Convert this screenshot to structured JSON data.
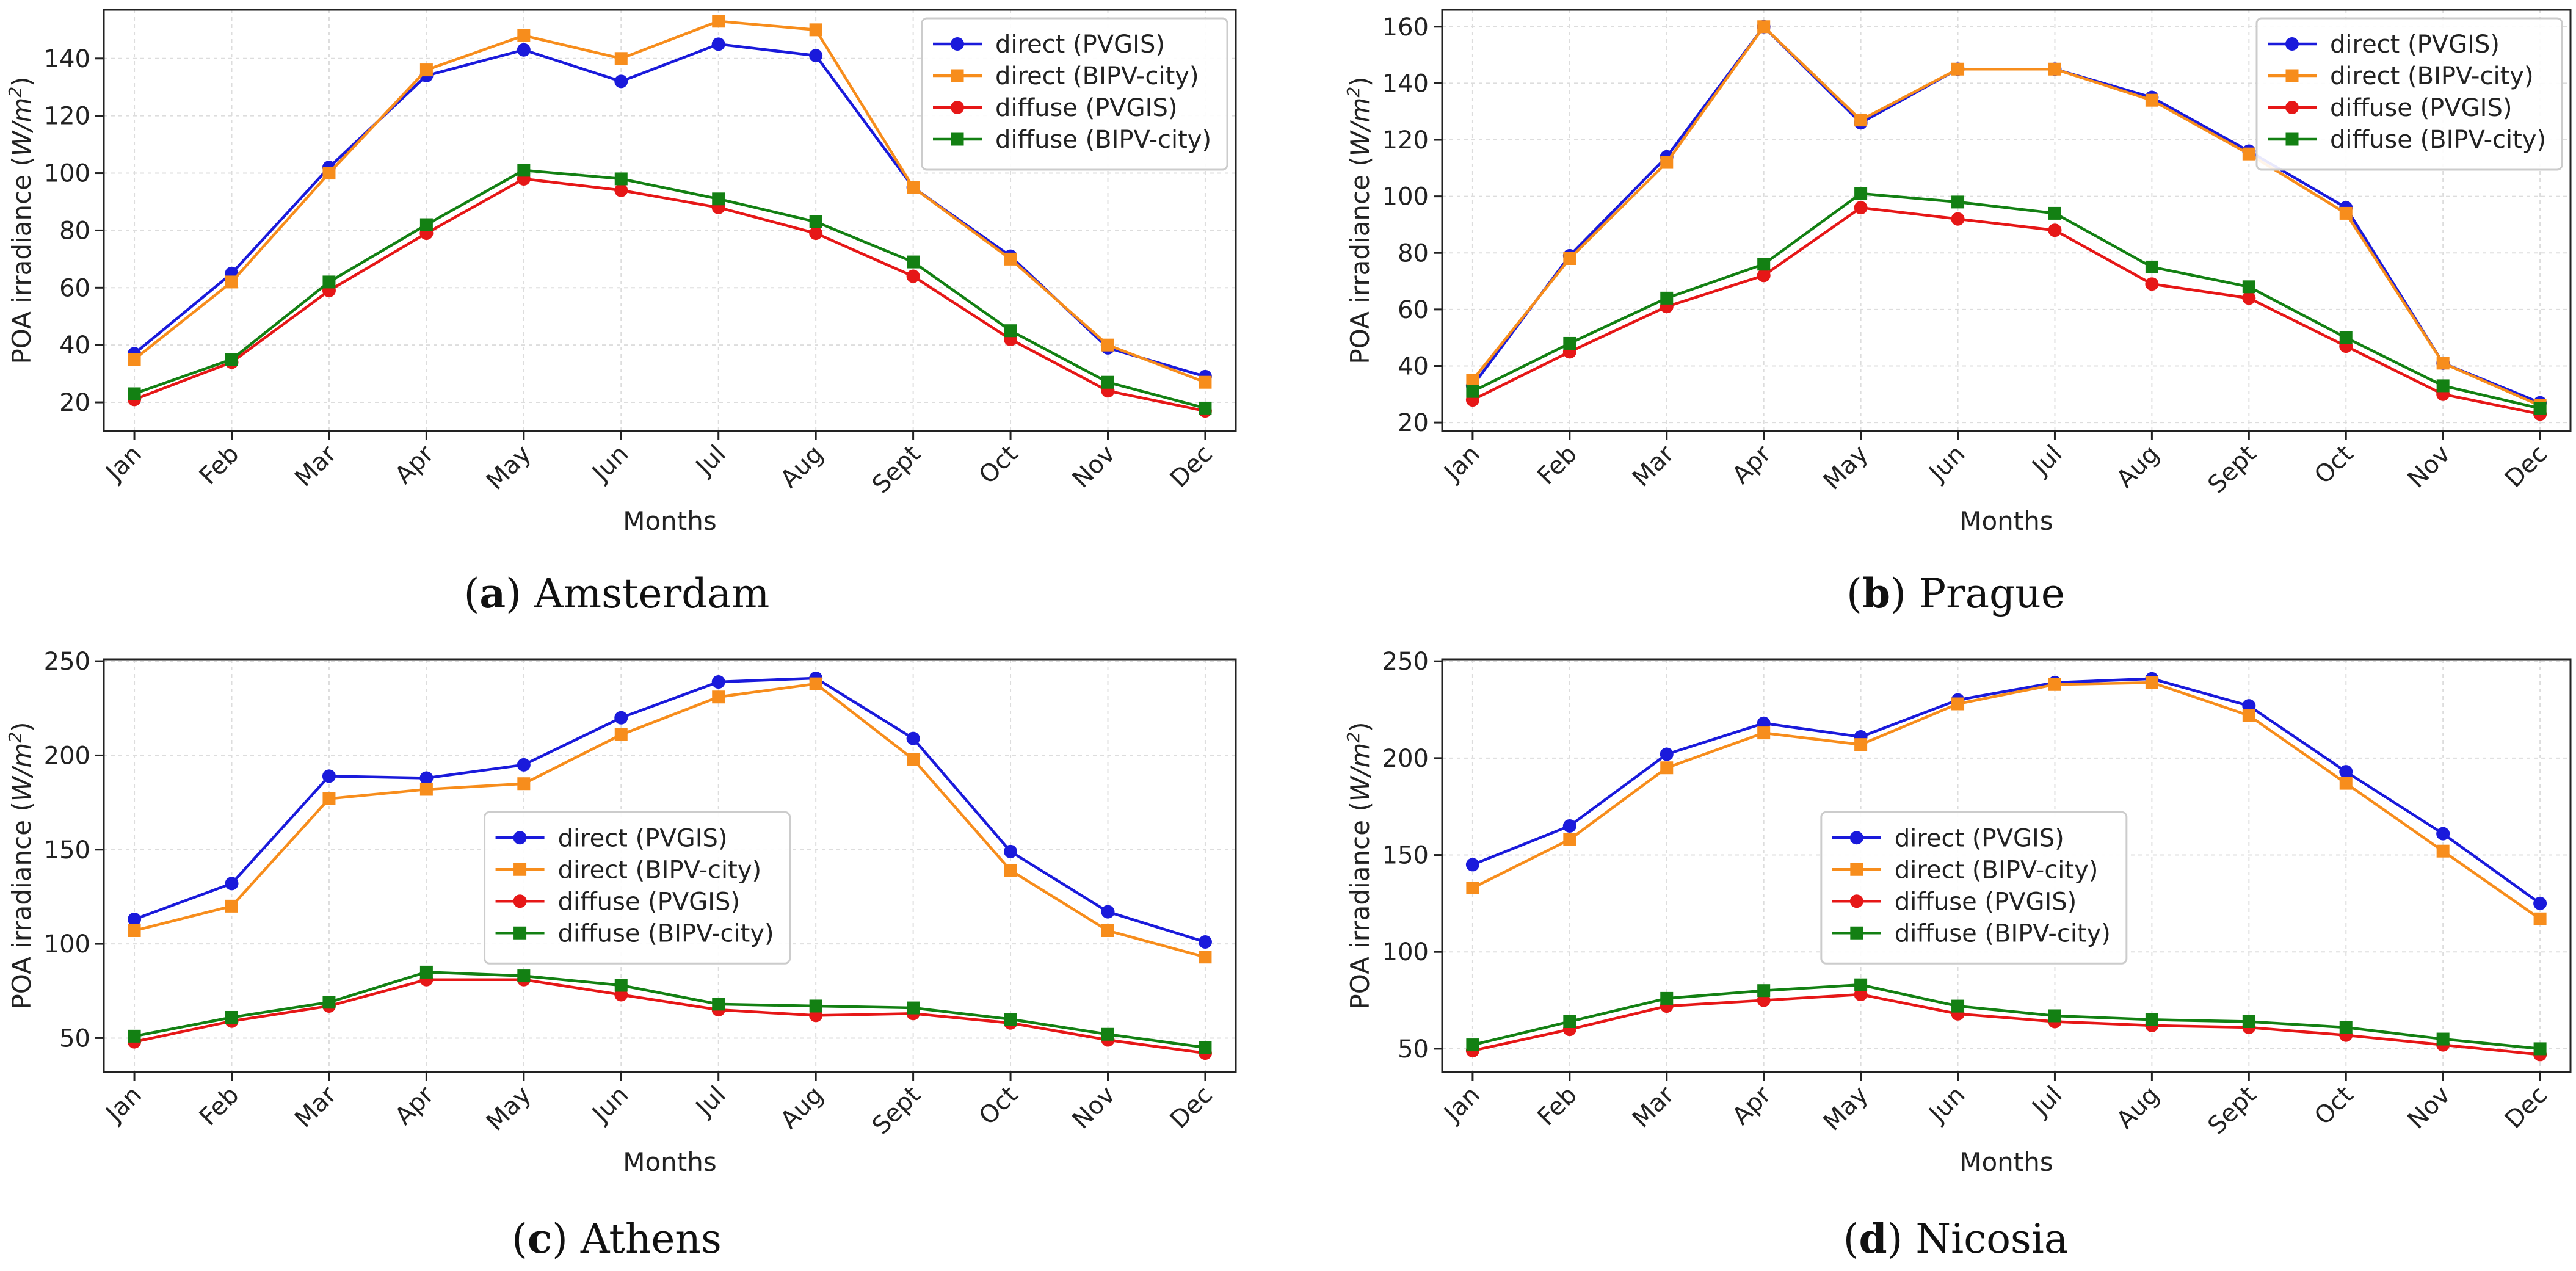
{
  "chart_data": [
    {
      "type": "line",
      "id": "amsterdam",
      "caption_letter": "a",
      "caption_city": "Amsterdam",
      "xlabel": "Months",
      "ylabel_prefix": "POA irradiance (",
      "ylabel_unit": "W/m",
      "ylabel_sup": "2",
      "ylabel_suffix": ")",
      "categories": [
        "Jan",
        "Feb",
        "Mar",
        "Apr",
        "May",
        "Jun",
        "Jul",
        "Aug",
        "Sept",
        "Oct",
        "Nov",
        "Dec"
      ],
      "ylim": [
        10,
        157
      ],
      "yticks": [
        20,
        40,
        60,
        80,
        100,
        120,
        140
      ],
      "legend_position": "top-right",
      "grid": true,
      "series": [
        {
          "name": "direct (PVGIS)",
          "color": "#1a1adb",
          "marker": "circle",
          "values": [
            37,
            65,
            102,
            134,
            143,
            132,
            145,
            141,
            95,
            71,
            39,
            29
          ]
        },
        {
          "name": "direct (BIPV-city)",
          "color": "#f78d1c",
          "marker": "square",
          "values": [
            35,
            62,
            100,
            136,
            148,
            140,
            153,
            150,
            95,
            70,
            40,
            27
          ]
        },
        {
          "name": "diffuse (PVGIS)",
          "color": "#e61717",
          "marker": "circle",
          "values": [
            21,
            34,
            59,
            79,
            98,
            94,
            88,
            79,
            64,
            42,
            24,
            17
          ]
        },
        {
          "name": "diffuse (BIPV-city)",
          "color": "#138013",
          "marker": "square",
          "values": [
            23,
            35,
            62,
            82,
            101,
            98,
            91,
            83,
            69,
            45,
            27,
            18
          ]
        }
      ]
    },
    {
      "type": "line",
      "id": "prague",
      "caption_letter": "b",
      "caption_city": "Prague",
      "xlabel": "Months",
      "ylabel_prefix": "POA irradiance (",
      "ylabel_unit": "W/m",
      "ylabel_sup": "2",
      "ylabel_suffix": ")",
      "categories": [
        "Jan",
        "Feb",
        "Mar",
        "Apr",
        "May",
        "Jun",
        "Jul",
        "Aug",
        "Sept",
        "Oct",
        "Nov",
        "Dec"
      ],
      "ylim": [
        17,
        166
      ],
      "yticks": [
        20,
        40,
        60,
        80,
        100,
        120,
        140,
        160
      ],
      "legend_position": "top-right",
      "grid": true,
      "series": [
        {
          "name": "direct (PVGIS)",
          "color": "#1a1adb",
          "marker": "circle",
          "values": [
            33,
            79,
            114,
            160,
            126,
            145,
            145,
            135,
            116,
            96,
            41,
            27
          ]
        },
        {
          "name": "direct (BIPV-city)",
          "color": "#f78d1c",
          "marker": "square",
          "values": [
            35,
            78,
            112,
            160,
            127,
            145,
            145,
            134,
            115,
            94,
            41,
            26
          ]
        },
        {
          "name": "diffuse (PVGIS)",
          "color": "#e61717",
          "marker": "circle",
          "values": [
            28,
            45,
            61,
            72,
            96,
            92,
            88,
            69,
            64,
            47,
            30,
            23
          ]
        },
        {
          "name": "diffuse (BIPV-city)",
          "color": "#138013",
          "marker": "square",
          "values": [
            31,
            48,
            64,
            76,
            101,
            98,
            94,
            75,
            68,
            50,
            33,
            25
          ]
        }
      ]
    },
    {
      "type": "line",
      "id": "athens",
      "caption_letter": "c",
      "caption_city": "Athens",
      "xlabel": "Months",
      "ylabel_prefix": "POA irradiance (",
      "ylabel_unit": "W/m",
      "ylabel_sup": "2",
      "ylabel_suffix": ")",
      "categories": [
        "Jan",
        "Feb",
        "Mar",
        "Apr",
        "May",
        "Jun",
        "Jul",
        "Aug",
        "Sept",
        "Oct",
        "Nov",
        "Dec"
      ],
      "ylim": [
        32,
        251
      ],
      "yticks": [
        50,
        100,
        150,
        200,
        250
      ],
      "legend_position": "center",
      "grid": true,
      "series": [
        {
          "name": "direct (PVGIS)",
          "color": "#1a1adb",
          "marker": "circle",
          "values": [
            113,
            132,
            189,
            188,
            195,
            220,
            239,
            241,
            209,
            149,
            117,
            101
          ]
        },
        {
          "name": "direct (BIPV-city)",
          "color": "#f78d1c",
          "marker": "square",
          "values": [
            107,
            120,
            177,
            182,
            185,
            211,
            231,
            238,
            198,
            139,
            107,
            93
          ]
        },
        {
          "name": "diffuse (PVGIS)",
          "color": "#e61717",
          "marker": "circle",
          "values": [
            48,
            59,
            67,
            81,
            81,
            73,
            65,
            62,
            63,
            58,
            49,
            42
          ]
        },
        {
          "name": "diffuse (BIPV-city)",
          "color": "#138013",
          "marker": "square",
          "values": [
            51,
            61,
            69,
            85,
            83,
            78,
            68,
            67,
            66,
            60,
            52,
            45
          ]
        }
      ]
    },
    {
      "type": "line",
      "id": "nicosia",
      "caption_letter": "d",
      "caption_city": "Nicosia",
      "xlabel": "Months",
      "ylabel_prefix": "POA irradiance (",
      "ylabel_unit": "W/m",
      "ylabel_sup": "2",
      "ylabel_suffix": ")",
      "categories": [
        "Jan",
        "Feb",
        "Mar",
        "Apr",
        "May",
        "Jun",
        "Jul",
        "Aug",
        "Sept",
        "Oct",
        "Nov",
        "Dec"
      ],
      "ylim": [
        38,
        251
      ],
      "yticks": [
        50,
        100,
        150,
        200,
        250
      ],
      "legend_position": "center",
      "grid": true,
      "series": [
        {
          "name": "direct (PVGIS)",
          "color": "#1a1adb",
          "marker": "circle",
          "values": [
            145,
            165,
            202,
            218,
            211,
            230,
            239,
            241,
            227,
            193,
            161,
            125
          ]
        },
        {
          "name": "direct (BIPV-city)",
          "color": "#f78d1c",
          "marker": "square",
          "values": [
            133,
            158,
            195,
            213,
            207,
            228,
            238,
            239,
            222,
            187,
            152,
            117
          ]
        },
        {
          "name": "diffuse (PVGIS)",
          "color": "#e61717",
          "marker": "circle",
          "values": [
            49,
            60,
            72,
            75,
            78,
            68,
            64,
            62,
            61,
            57,
            52,
            47
          ]
        },
        {
          "name": "diffuse (BIPV-city)",
          "color": "#138013",
          "marker": "square",
          "values": [
            52,
            64,
            76,
            80,
            83,
            72,
            67,
            65,
            64,
            61,
            55,
            50
          ]
        }
      ]
    }
  ]
}
